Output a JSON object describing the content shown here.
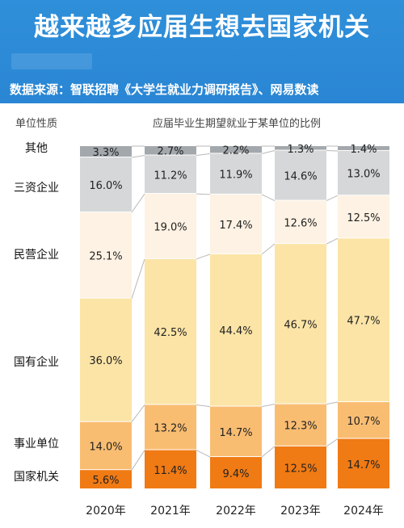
{
  "header": {
    "title": "越来越多应届生想去国家机关",
    "source": "数据来源：智联招聘《大学生就业力调研报告》、网易数读"
  },
  "chart_data": {
    "type": "bar",
    "stacked": true,
    "percent": true,
    "left_header": "单位性质",
    "title": "应届毕业生期望就业于某单位的比例",
    "categories": [
      "2020年",
      "2021年",
      "2022年",
      "2023年",
      "2024年"
    ],
    "series": [
      {
        "name": "国家机关",
        "color": "#f07a14",
        "values": [
          5.6,
          11.4,
          9.4,
          12.5,
          14.7
        ]
      },
      {
        "name": "事业单位",
        "color": "#f9bd72",
        "values": [
          14.0,
          13.2,
          14.7,
          12.3,
          10.7
        ]
      },
      {
        "name": "国有企业",
        "color": "#fbe4a6",
        "values": [
          36.0,
          42.5,
          44.4,
          46.7,
          47.7
        ]
      },
      {
        "name": "民营企业",
        "color": "#fdf2e3",
        "values": [
          25.1,
          19.0,
          17.4,
          12.6,
          12.5
        ]
      },
      {
        "name": "三资企业",
        "color": "#d6d7d8",
        "values": [
          16.0,
          11.2,
          11.9,
          14.6,
          13.0
        ]
      },
      {
        "name": "其他",
        "color": "#a3a8ad",
        "values": [
          3.3,
          2.7,
          2.2,
          1.3,
          1.4
        ]
      }
    ],
    "value_labels": [
      [
        "5.6%",
        "11.4%",
        "9.4%",
        "12.5%",
        "14.7%"
      ],
      [
        "14.0%",
        "13.2%",
        "14.7%",
        "12.3%",
        "10.7%"
      ],
      [
        "36.0%",
        "42.5%",
        "44.4%",
        "46.7%",
        "47.7%"
      ],
      [
        "25.1%",
        "19.0%",
        "17.4%",
        "12.6%",
        "12.5%"
      ],
      [
        "16.0%",
        "11.2%",
        "11.9%",
        "14.6%",
        "13.0%"
      ],
      [
        "3.3%",
        "2.7%",
        "2.2%",
        "1.3%",
        "1.4%"
      ]
    ],
    "ylim": [
      0,
      100
    ],
    "grid": false,
    "legend": "left"
  }
}
